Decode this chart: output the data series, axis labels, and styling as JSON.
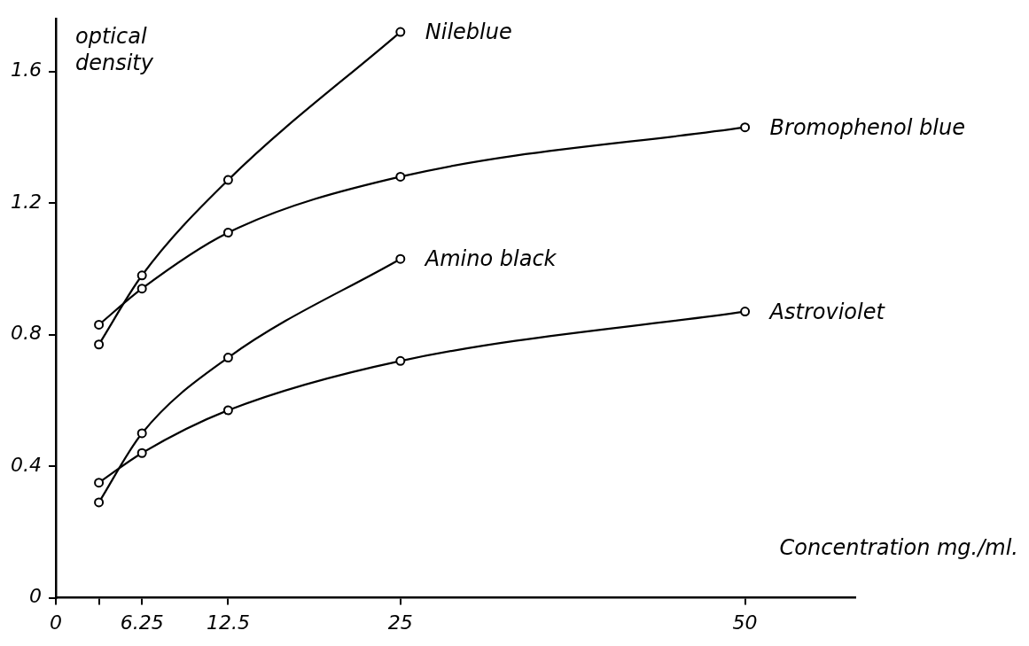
{
  "chart_data": {
    "type": "line",
    "xlabel": "Concentration mg./ml.",
    "ylabel": "optical density",
    "x": [
      3.125,
      6.25,
      12.5,
      25,
      50
    ],
    "series": [
      {
        "name": "Nileblue",
        "color": "#000000",
        "values": [
          0.77,
          0.98,
          1.27,
          1.72,
          null
        ]
      },
      {
        "name": "Bromophenol blue",
        "color": "#000000",
        "values": [
          0.83,
          0.94,
          1.11,
          1.28,
          1.43
        ]
      },
      {
        "name": "Amino black",
        "color": "#000000",
        "values": [
          0.29,
          0.5,
          0.73,
          1.03,
          null
        ]
      },
      {
        "name": "Astroviolet",
        "color": "#000000",
        "values": [
          0.35,
          0.44,
          0.57,
          0.72,
          0.87
        ]
      }
    ],
    "xlim": [
      0,
      58
    ],
    "ylim": [
      0,
      1.76
    ],
    "xticks": [
      0,
      {
        "value": 3.125,
        "label": null
      },
      6.25,
      12.5,
      25,
      50
    ],
    "yticks": [
      0,
      0.4,
      0.8,
      1.2,
      1.6
    ],
    "grid": false,
    "legend": false,
    "marker": "circle",
    "line_style": "solid"
  }
}
